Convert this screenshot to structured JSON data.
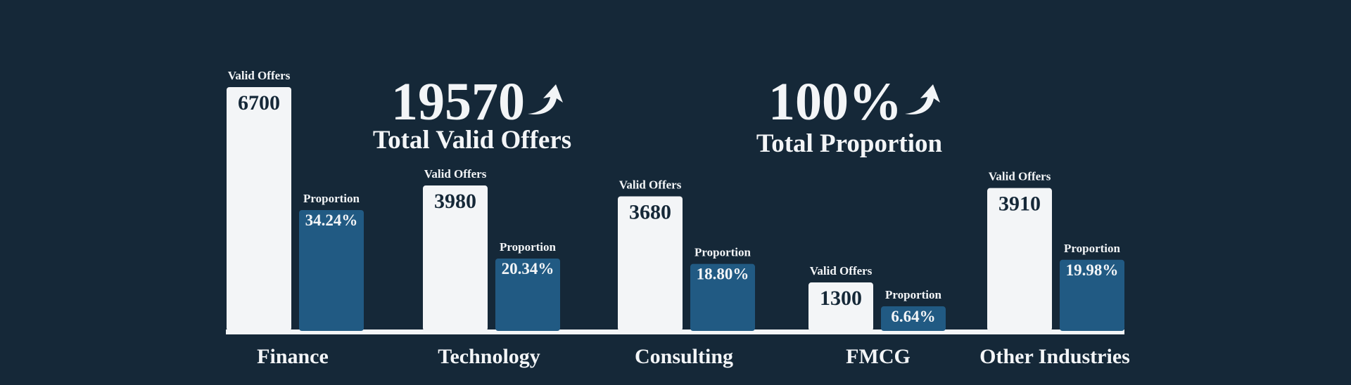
{
  "chart_data": {
    "type": "bar",
    "categories": [
      "Finance",
      "Technology",
      "Consulting",
      "FMCG",
      "Other Industries"
    ],
    "series": [
      {
        "name": "Valid Offers",
        "color": "#f3f5f7",
        "values": [
          6700,
          3980,
          3680,
          1300,
          3910
        ]
      },
      {
        "name": "Proportion",
        "color": "#215a83",
        "axis": "y2",
        "values": [
          34.24,
          20.34,
          18.8,
          6.64,
          19.98
        ],
        "value_labels": [
          "34.24%",
          "20.34%",
          "18.80%",
          "6.64%",
          "19.98%"
        ]
      }
    ],
    "kpis": [
      {
        "value": 19570,
        "label": "Total Valid Offers"
      },
      {
        "value": 100,
        "value_label": "100%",
        "label": "Total Proportion"
      }
    ]
  }
}
